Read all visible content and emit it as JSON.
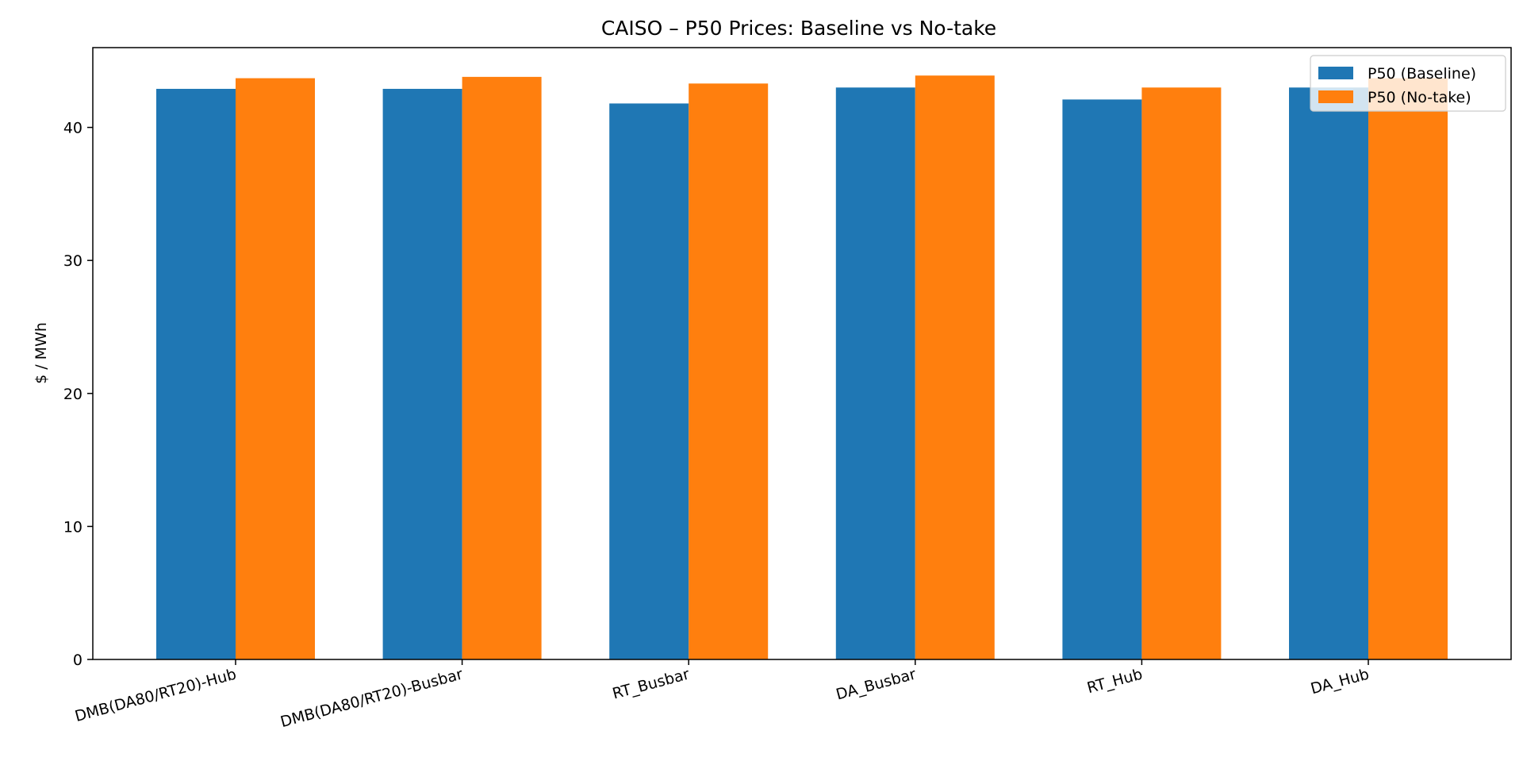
{
  "chart_data": {
    "type": "bar",
    "title": "CAISO – P50 Prices: Baseline vs No-take",
    "xlabel": "",
    "ylabel": "$ / MWh",
    "categories": [
      "DMB(DA80/RT20)-Hub",
      "DMB(DA80/RT20)-Busbar",
      "RT_Busbar",
      "DA_Busbar",
      "RT_Hub",
      "DA_Hub"
    ],
    "series": [
      {
        "name": "P50 (Baseline)",
        "color": "#1f77b4",
        "values": [
          42.9,
          42.9,
          41.8,
          43.0,
          42.1,
          43.0
        ]
      },
      {
        "name": "P50 (No-take)",
        "color": "#ff7f0e",
        "values": [
          43.7,
          43.8,
          43.3,
          43.9,
          43.0,
          43.7
        ]
      }
    ],
    "ylim": [
      0,
      46.0
    ],
    "yticks": [
      0,
      10,
      20,
      30,
      40
    ],
    "grid": false,
    "legend_position": "top-right"
  }
}
